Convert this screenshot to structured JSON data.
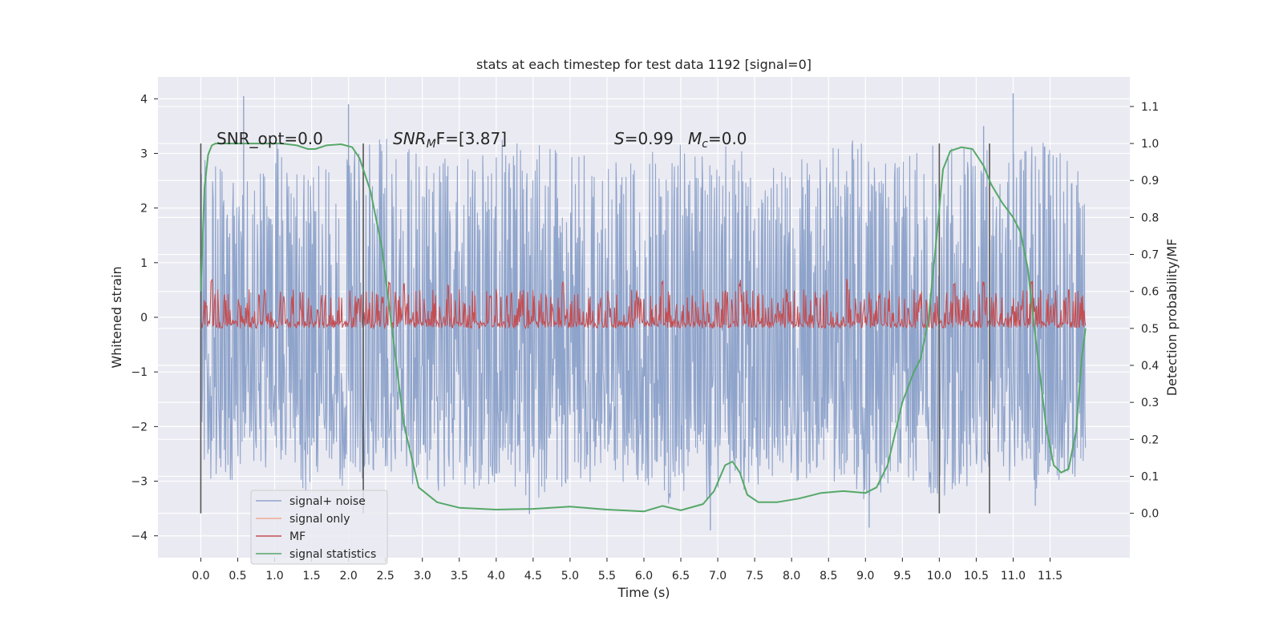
{
  "chart_data": {
    "type": "line",
    "title": "stats at each timestep for test data 1192 [signal=0]",
    "xlabel": "Time (s)",
    "ylabel": "Whitened strain",
    "ylabel_right": "Detection probability/MF",
    "xlim": [
      -0.58,
      12.58
    ],
    "ylim": [
      -4.4,
      4.4
    ],
    "ylim_right": [
      -0.12,
      1.18
    ],
    "x_ticks": [
      "0.0",
      "0.5",
      "1.0",
      "1.5",
      "2.0",
      "2.5",
      "3.0",
      "3.5",
      "4.0",
      "4.5",
      "5.0",
      "5.5",
      "6.0",
      "6.5",
      "7.0",
      "7.5",
      "8.0",
      "8.5",
      "9.0",
      "9.5",
      "10.0",
      "10.5",
      "11.0",
      "11.5"
    ],
    "y_ticks": [
      "4",
      "3",
      "2",
      "1",
      "0",
      "−1",
      "−2",
      "−3",
      "−4"
    ],
    "y_ticks_right": [
      "1.1",
      "1.0",
      "0.9",
      "0.8",
      "0.7",
      "0.6",
      "0.5",
      "0.4",
      "0.3",
      "0.2",
      "0.1",
      "0.0"
    ],
    "grid": true,
    "legend_placement": "lower-left",
    "annotations": {
      "snr_opt": "SNR_opt=0.0",
      "snr_mf_main": "SNR",
      "snr_mf_sub": "M",
      "snr_mf_tail": "F=[3.87]",
      "s_main": "S",
      "s_tail": "=0.99",
      "mc_main": "M",
      "mc_sub": "c",
      "mc_tail": "=0.0"
    },
    "vertical_markers": [
      0.0,
      2.2,
      10.0,
      10.68
    ],
    "series": [
      {
        "name": "signal+ noise",
        "color": "#8fa4cb",
        "envelope_hi": [
          3.0,
          2.6,
          3.2,
          2.8,
          3.0,
          3.3,
          3.1,
          2.9,
          3.4,
          3.2,
          3.0,
          2.9,
          3.1,
          3.3,
          3.2,
          3.0,
          2.9,
          3.1,
          3.3,
          2.9,
          3.2,
          3.1,
          3.0,
          3.3,
          3.2
        ],
        "envelope_lo": [
          -2.9,
          -3.1,
          -2.8,
          -3.3,
          -3.1,
          -3.0,
          -3.2,
          -3.3,
          -3.0,
          -3.4,
          -3.1,
          -3.0,
          -3.2,
          -3.5,
          -3.3,
          -3.1,
          -3.0,
          -3.2,
          -3.4,
          -3.0,
          -3.3,
          -3.1,
          -3.0,
          -3.2,
          -2.9
        ],
        "spikes": [
          {
            "x": 0.58,
            "y": 4.05
          },
          {
            "x": 2.0,
            "y": 3.9
          },
          {
            "x": 11.0,
            "y": 4.1
          },
          {
            "x": 10.6,
            "y": 3.5
          },
          {
            "x": 6.9,
            "y": -3.9
          },
          {
            "x": 9.05,
            "y": -3.85
          },
          {
            "x": 4.45,
            "y": -3.6
          },
          {
            "x": 11.3,
            "y": -3.45
          }
        ]
      },
      {
        "name": "signal only",
        "color": "#eea995",
        "values": []
      },
      {
        "name": "MF",
        "color": "#c44e52",
        "axis": "right",
        "base": 0.5,
        "upper": 0.61,
        "peaks_x": [
          0.15,
          2.55,
          2.75,
          3.35,
          4.9,
          6.25,
          7.3,
          8.75,
          10.2,
          10.6,
          11.25
        ]
      },
      {
        "name": "signal statistics",
        "color": "#55a868",
        "axis": "right",
        "x": [
          0.0,
          0.05,
          0.1,
          0.15,
          0.2,
          0.3,
          0.5,
          0.8,
          1.1,
          1.3,
          1.45,
          1.55,
          1.7,
          1.9,
          2.05,
          2.15,
          2.3,
          2.45,
          2.6,
          2.75,
          2.95,
          3.2,
          3.5,
          4.0,
          4.5,
          5.0,
          5.5,
          6.0,
          6.25,
          6.5,
          6.8,
          6.95,
          7.1,
          7.2,
          7.3,
          7.4,
          7.55,
          7.8,
          8.1,
          8.4,
          8.7,
          9.0,
          9.15,
          9.3,
          9.5,
          9.65,
          9.75,
          9.85,
          9.95,
          10.05,
          10.15,
          10.3,
          10.45,
          10.6,
          10.7,
          10.85,
          11.0,
          11.1,
          11.2,
          11.3,
          11.45,
          11.55,
          11.65,
          11.75,
          11.85,
          11.93,
          11.98
        ],
        "y": [
          0.6,
          0.88,
          0.97,
          0.995,
          1.0,
          1.0,
          1.0,
          1.0,
          1.0,
          0.995,
          0.985,
          0.985,
          0.995,
          0.998,
          0.99,
          0.96,
          0.87,
          0.72,
          0.48,
          0.24,
          0.07,
          0.03,
          0.015,
          0.01,
          0.012,
          0.018,
          0.01,
          0.005,
          0.02,
          0.008,
          0.025,
          0.06,
          0.13,
          0.14,
          0.11,
          0.05,
          0.03,
          0.03,
          0.04,
          0.055,
          0.06,
          0.055,
          0.07,
          0.13,
          0.3,
          0.38,
          0.42,
          0.52,
          0.72,
          0.93,
          0.98,
          0.99,
          0.985,
          0.94,
          0.89,
          0.84,
          0.8,
          0.76,
          0.66,
          0.48,
          0.23,
          0.13,
          0.11,
          0.12,
          0.22,
          0.42,
          0.5
        ]
      }
    ]
  }
}
